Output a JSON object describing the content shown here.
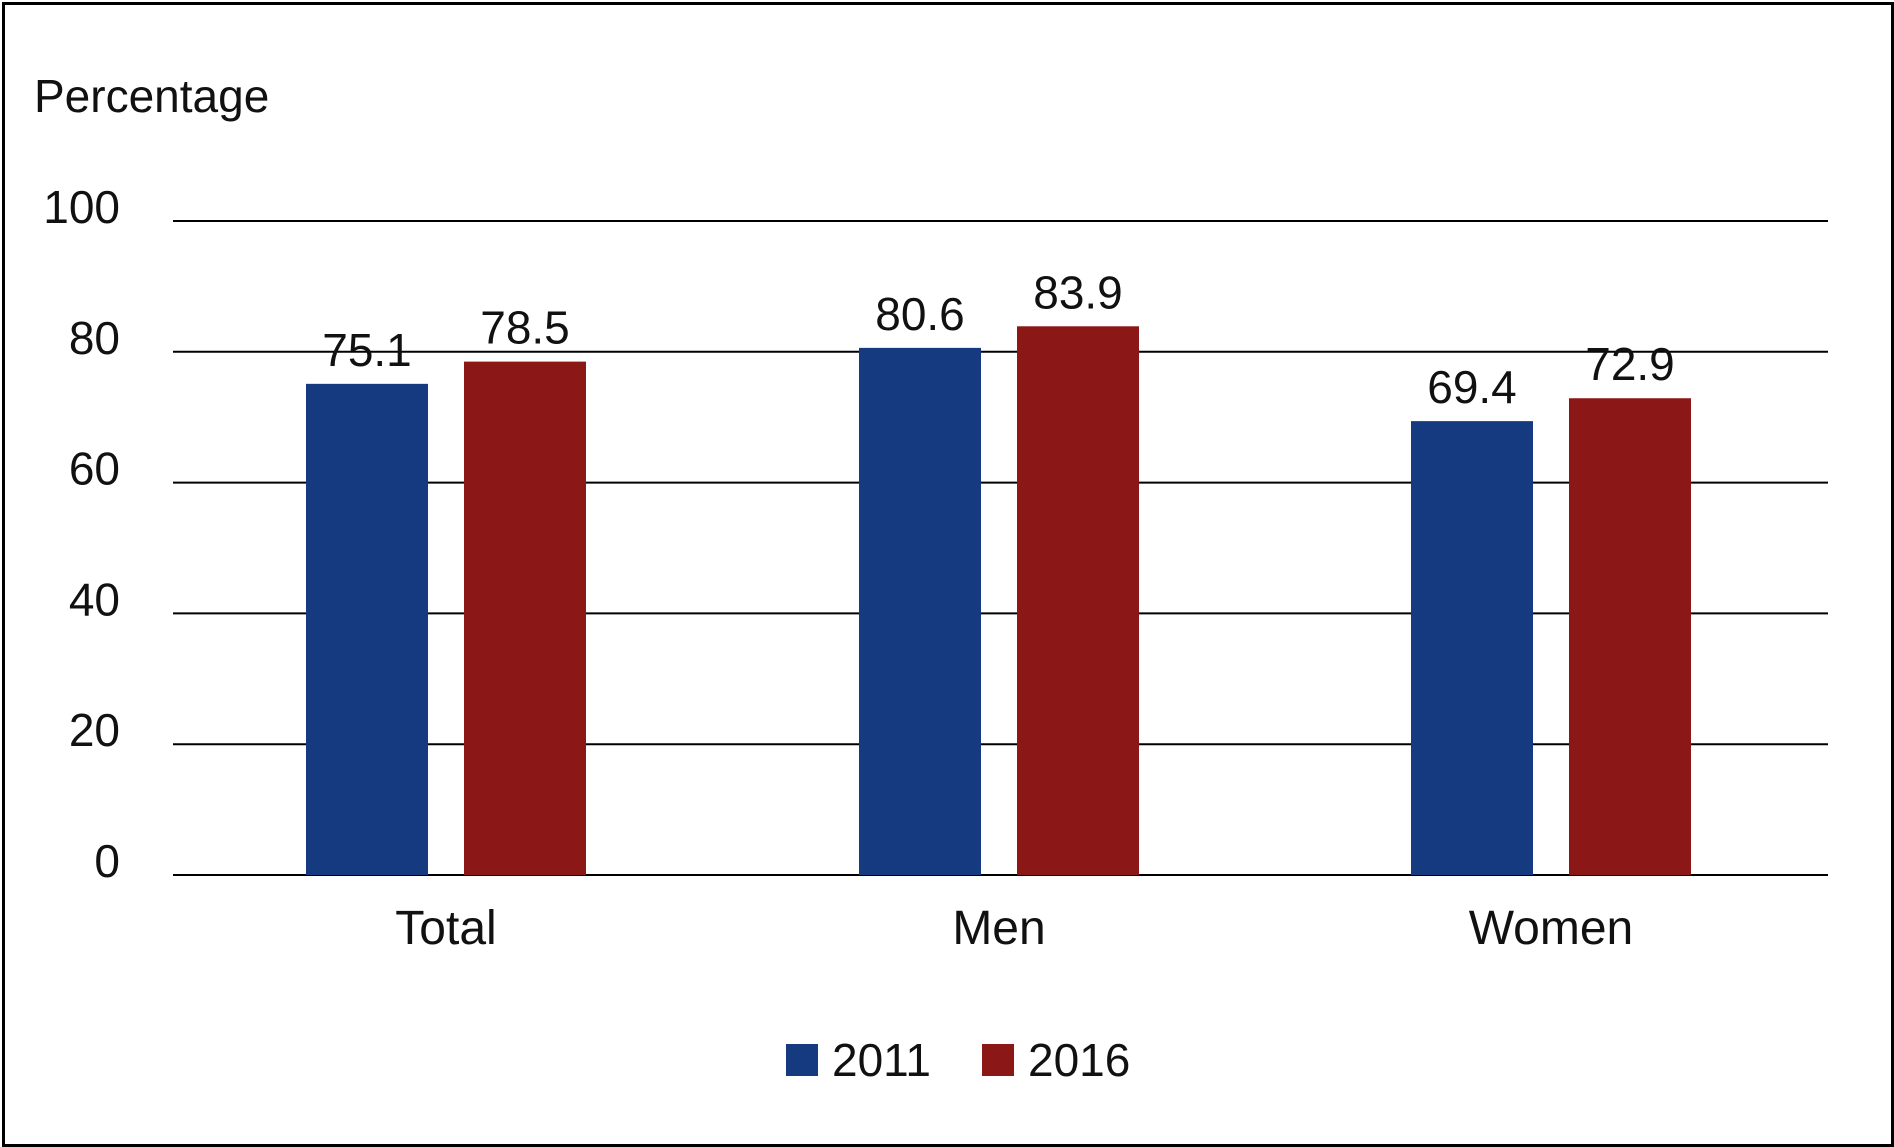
{
  "chart_data": {
    "type": "bar",
    "ylabel": "Percentage",
    "xlabel": "",
    "ylim": [
      0,
      100
    ],
    "yticks": [
      0,
      20,
      40,
      60,
      80,
      100
    ],
    "grid": true,
    "legend_position": "bottom-center",
    "categories": [
      "Total",
      "Men",
      "Women"
    ],
    "series": [
      {
        "name": "2011",
        "color": "#153a7f",
        "values": [
          75.1,
          80.6,
          69.4
        ],
        "labels": [
          "75.1",
          "80.6",
          "69.4"
        ]
      },
      {
        "name": "2016",
        "color": "#8b1717",
        "values": [
          78.5,
          83.9,
          72.9
        ],
        "labels": [
          "78.5",
          "83.9",
          "72.9"
        ]
      }
    ]
  }
}
